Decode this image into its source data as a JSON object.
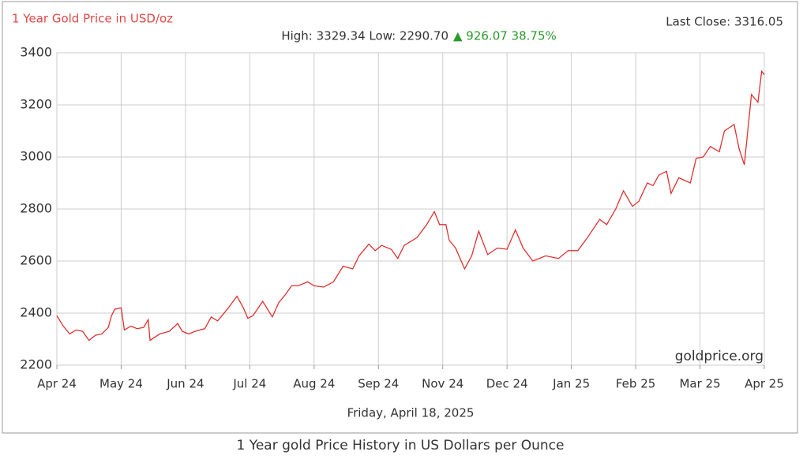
{
  "chart_data": {
    "type": "line",
    "title": "1 Year Gold Price in USD/oz",
    "last_close": "Last Close: 3316.05",
    "high_low": "High: 3329.34 Low: 2290.70",
    "change": "▲ 926.07 38.75%",
    "watermark": "goldprice.org",
    "x_label": "Friday, April 18, 2025",
    "caption": "1 Year gold Price History in US Dollars per Ounce",
    "color": "#e03030",
    "grid": true,
    "xlim": [
      0,
      11
    ],
    "xticks": [
      {
        "value": 0,
        "label": "Apr 24"
      },
      {
        "value": 1,
        "label": "May 24"
      },
      {
        "value": 2,
        "label": "Jun 24"
      },
      {
        "value": 3,
        "label": "Jul 24"
      },
      {
        "value": 4,
        "label": "Aug 24"
      },
      {
        "value": 5,
        "label": "Sep 24"
      },
      {
        "value": 6,
        "label": "Nov 24"
      },
      {
        "value": 7,
        "label": "Dec 24"
      },
      {
        "value": 8,
        "label": "Jan 25"
      },
      {
        "value": 9,
        "label": "Feb 25"
      },
      {
        "value": 10,
        "label": "Mar 25"
      },
      {
        "value": 11,
        "label": "Apr 25"
      }
    ],
    "ylim": [
      2200,
      3400
    ],
    "yticks": [
      2200,
      2400,
      2600,
      2800,
      3000,
      3200,
      3400
    ],
    "x": [
      0,
      0.1,
      0.2,
      0.3,
      0.4,
      0.5,
      0.6,
      0.7,
      0.8,
      0.85,
      0.9,
      1.0,
      1.05,
      1.15,
      1.25,
      1.35,
      1.42,
      1.45,
      1.6,
      1.75,
      1.88,
      1.95,
      2.05,
      2.15,
      2.3,
      2.4,
      2.5,
      2.65,
      2.8,
      2.9,
      2.97,
      3.05,
      3.2,
      3.35,
      3.45,
      3.55,
      3.65,
      3.75,
      3.9,
      4.0,
      4.15,
      4.3,
      4.45,
      4.6,
      4.7,
      4.85,
      4.95,
      5.05,
      5.2,
      5.3,
      5.4,
      5.6,
      5.75,
      5.87,
      5.95,
      6.05,
      6.1,
      6.2,
      6.34,
      6.45,
      6.56,
      6.7,
      6.85,
      7.0,
      7.13,
      7.25,
      7.4,
      7.6,
      7.8,
      7.95,
      8.1,
      8.25,
      8.44,
      8.55,
      8.69,
      8.81,
      8.95,
      9.05,
      9.18,
      9.27,
      9.36,
      9.48,
      9.55,
      9.67,
      9.85,
      9.94,
      10.05,
      10.16,
      10.3,
      10.38,
      10.53,
      10.61,
      10.69,
      10.8,
      10.9,
      10.96,
      11.0
    ],
    "values": [
      2390,
      2350,
      2320,
      2335,
      2330,
      2295,
      2315,
      2320,
      2345,
      2390,
      2415,
      2420,
      2335,
      2350,
      2340,
      2345,
      2375,
      2295,
      2320,
      2330,
      2360,
      2330,
      2320,
      2330,
      2340,
      2385,
      2370,
      2415,
      2465,
      2420,
      2380,
      2390,
      2445,
      2385,
      2440,
      2470,
      2505,
      2505,
      2520,
      2505,
      2500,
      2520,
      2580,
      2570,
      2620,
      2665,
      2640,
      2660,
      2645,
      2610,
      2660,
      2690,
      2740,
      2790,
      2740,
      2740,
      2680,
      2650,
      2570,
      2620,
      2715,
      2625,
      2650,
      2645,
      2720,
      2650,
      2600,
      2620,
      2610,
      2640,
      2640,
      2690,
      2760,
      2740,
      2800,
      2870,
      2810,
      2830,
      2900,
      2890,
      2930,
      2945,
      2860,
      2920,
      2900,
      2995,
      3000,
      3040,
      3020,
      3100,
      3125,
      3030,
      2970,
      3240,
      3210,
      3329.34,
      3316.05
    ]
  }
}
